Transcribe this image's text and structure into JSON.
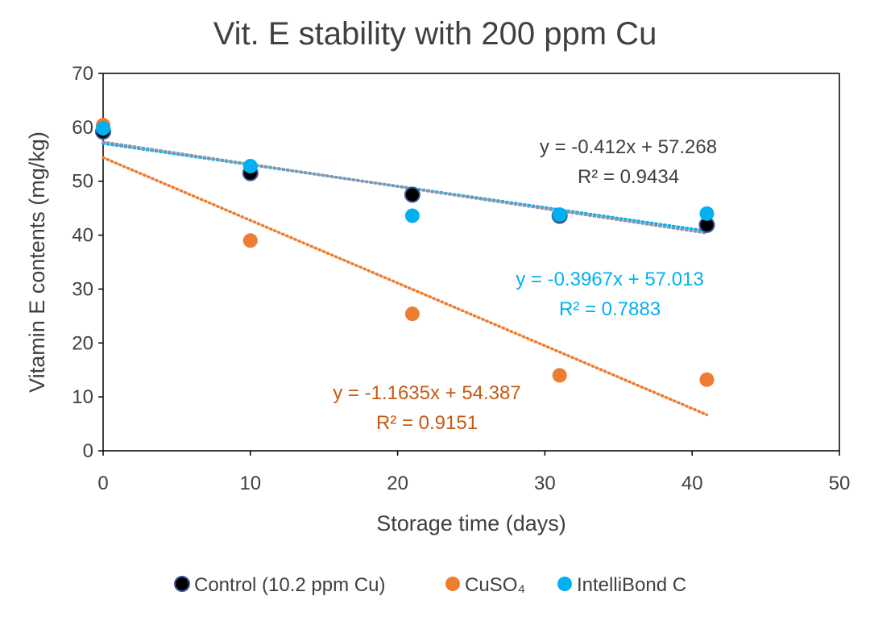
{
  "colors": {
    "control": "#000000",
    "control_edge": "#3b5998",
    "cuso4": "#ed7d31",
    "cuso4_trend_text": "#c55a11",
    "intellibond": "#00b0f0",
    "control_trend": "#8496b0",
    "text": "#404040",
    "axis": "#000000"
  },
  "chart_data": {
    "type": "scatter",
    "title": "Vit. E stability with 200 ppm Cu",
    "xlabel": "Storage time (days)",
    "ylabel": "Vitamin E contents (mg/kg)",
    "xlim": [
      0,
      50
    ],
    "ylim": [
      0,
      70
    ],
    "xticks": [
      "0",
      "10",
      "20",
      "30",
      "40",
      "50"
    ],
    "yticks": [
      "0",
      "10",
      "20",
      "30",
      "40",
      "50",
      "60",
      "70"
    ],
    "grid": false,
    "legend_position": "bottom",
    "series": [
      {
        "name": "Control (10.2 ppm Cu)",
        "x": [
          0,
          10,
          21,
          31,
          41
        ],
        "y": [
          59.2,
          51.5,
          47.5,
          43.6,
          41.9
        ],
        "trendline": {
          "slope": -0.412,
          "intercept": 57.268,
          "equation": "y = -0.412x + 57.268",
          "r2": "R² = 0.9434"
        }
      },
      {
        "name": "CuSO₄",
        "x": [
          0,
          10,
          21,
          31,
          41
        ],
        "y": [
          60.4,
          39.0,
          25.4,
          14.0,
          13.2
        ],
        "trendline": {
          "slope": -1.1635,
          "intercept": 54.387,
          "equation": "y = -1.1635x + 54.387",
          "r2": "R² = 0.9151"
        }
      },
      {
        "name": "IntelliBond C",
        "x": [
          0,
          10,
          21,
          31,
          41
        ],
        "y": [
          59.8,
          52.8,
          43.6,
          43.8,
          44.0
        ],
        "trendline": {
          "slope": -0.3967,
          "intercept": 57.013,
          "equation": "y = -0.3967x + 57.013",
          "r2": "R² = 0.7883"
        }
      }
    ]
  }
}
